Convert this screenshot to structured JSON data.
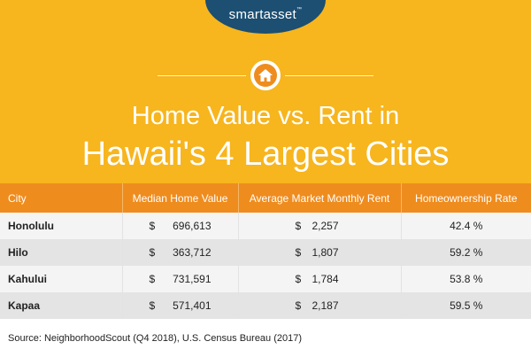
{
  "brand": {
    "logo_text": "smartasset",
    "logo_tm": "™"
  },
  "icons": {
    "header_icon": "home-icon"
  },
  "colors": {
    "background": "#f7b51e",
    "header_row": "#ef8c1e",
    "logo_bg": "#1c4f72"
  },
  "title": {
    "line1": "Home Value vs. Rent in",
    "line2": "Hawaii's 4 Largest Cities"
  },
  "table": {
    "headers": [
      "City",
      "Median Home Value",
      "Average Market Monthly Rent",
      "Homeownership Rate"
    ],
    "rows": [
      {
        "city": "Honolulu",
        "home_currency": "$",
        "home_value": "696,613",
        "rent_currency": "$",
        "rent": "2,257",
        "rate": "42.4 %"
      },
      {
        "city": "Hilo",
        "home_currency": "$",
        "home_value": "363,712",
        "rent_currency": "$",
        "rent": "1,807",
        "rate": "59.2 %"
      },
      {
        "city": "Kahului",
        "home_currency": "$",
        "home_value": "731,591",
        "rent_currency": "$",
        "rent": "1,784",
        "rate": "53.8 %"
      },
      {
        "city": "Kapaa",
        "home_currency": "$",
        "home_value": "571,401",
        "rent_currency": "$",
        "rent": "2,187",
        "rate": "59.5 %"
      }
    ]
  },
  "footer": {
    "source": "Source: NeighborhoodScout (Q4 2018), U.S. Census Bureau (2017)"
  }
}
